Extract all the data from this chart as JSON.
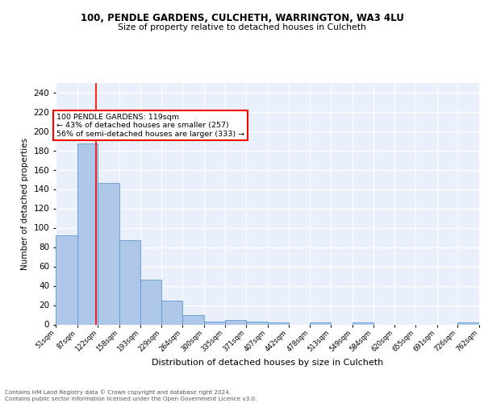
{
  "title1": "100, PENDLE GARDENS, CULCHETH, WARRINGTON, WA3 4LU",
  "title2": "Size of property relative to detached houses in Culcheth",
  "xlabel": "Distribution of detached houses by size in Culcheth",
  "ylabel": "Number of detached properties",
  "bar_edges": [
    51,
    87,
    122,
    158,
    193,
    229,
    264,
    300,
    335,
    371,
    407,
    442,
    478,
    513,
    549,
    584,
    620,
    655,
    691,
    726,
    762
  ],
  "bar_heights": [
    92,
    187,
    146,
    87,
    46,
    25,
    10,
    3,
    5,
    3,
    2,
    0,
    2,
    0,
    2,
    0,
    0,
    0,
    0,
    2
  ],
  "bar_color": "#aec6e8",
  "bar_edge_color": "#5b9bd5",
  "vline_x": 119,
  "vline_color": "red",
  "annotation_text": "100 PENDLE GARDENS: 119sqm\n← 43% of detached houses are smaller (257)\n56% of semi-detached houses are larger (333) →",
  "annotation_box_color": "white",
  "annotation_box_edge": "red",
  "ylim": [
    0,
    250
  ],
  "yticks": [
    0,
    20,
    40,
    60,
    80,
    100,
    120,
    140,
    160,
    180,
    200,
    220,
    240
  ],
  "background_color": "#eaf0fb",
  "grid_color": "white",
  "footnote": "Contains HM Land Registry data © Crown copyright and database right 2024.\nContains public sector information licensed under the Open Government Licence v3.0."
}
